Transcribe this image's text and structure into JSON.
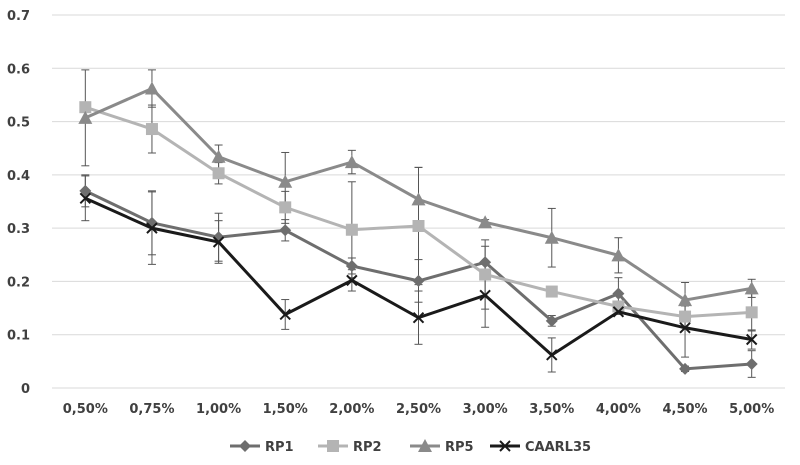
{
  "chart_data": {
    "type": "line",
    "categories": [
      "0,50%",
      "0,75%",
      "1,00%",
      "1,50%",
      "2,00%",
      "2,50%",
      "3,00%",
      "3,50%",
      "4,00%",
      "4,50%",
      "5,00%"
    ],
    "ylim": [
      0,
      0.7
    ],
    "yticks": [
      "0",
      "0.1",
      "0.2",
      "0.3",
      "0.4",
      "0.5",
      "0.6",
      "0.7"
    ],
    "grid": true,
    "legend_position": "bottom",
    "series": [
      {
        "name": "RP1",
        "marker": "diamond",
        "color": "#6e6e6e",
        "values": [
          0.37,
          0.31,
          0.283,
          0.296,
          0.229,
          0.201,
          0.236,
          0.126,
          0.177,
          0.036,
          0.045
        ],
        "errors": [
          0.03,
          0.06,
          0.045,
          0.02,
          0.015,
          0.04,
          0.03,
          0.01,
          0.03,
          0.005,
          0.025
        ]
      },
      {
        "name": "RP2",
        "marker": "square",
        "color": "#b4b4b4",
        "values": [
          0.527,
          0.486,
          0.403,
          0.339,
          0.297,
          0.304,
          0.213,
          0.181,
          0.153,
          0.134,
          0.142
        ],
        "errors": [
          0.005,
          0.045,
          0.02,
          0.03,
          0.09,
          0.11,
          0.065,
          0.005,
          0.01,
          0.02,
          0.035
        ]
      },
      {
        "name": "RP5",
        "marker": "triangle",
        "color": "#8a8a8a",
        "values": [
          0.507,
          0.562,
          0.434,
          0.387,
          0.424,
          0.354,
          0.311,
          0.282,
          0.249,
          0.165,
          0.187
        ],
        "errors": [
          0.09,
          0.035,
          0.022,
          0.055,
          0.022,
          0.06,
          0.005,
          0.055,
          0.033,
          0.033,
          0.017
        ]
      },
      {
        "name": "CAARL35",
        "marker": "x",
        "color": "#1a1a1a",
        "values": [
          0.356,
          0.3,
          0.274,
          0.138,
          0.202,
          0.132,
          0.174,
          0.062,
          0.143,
          0.113,
          0.091
        ],
        "errors": [
          0.042,
          0.068,
          0.04,
          0.028,
          0.02,
          0.05,
          0.06,
          0.032,
          0.005,
          0.055,
          0.018
        ]
      }
    ]
  }
}
